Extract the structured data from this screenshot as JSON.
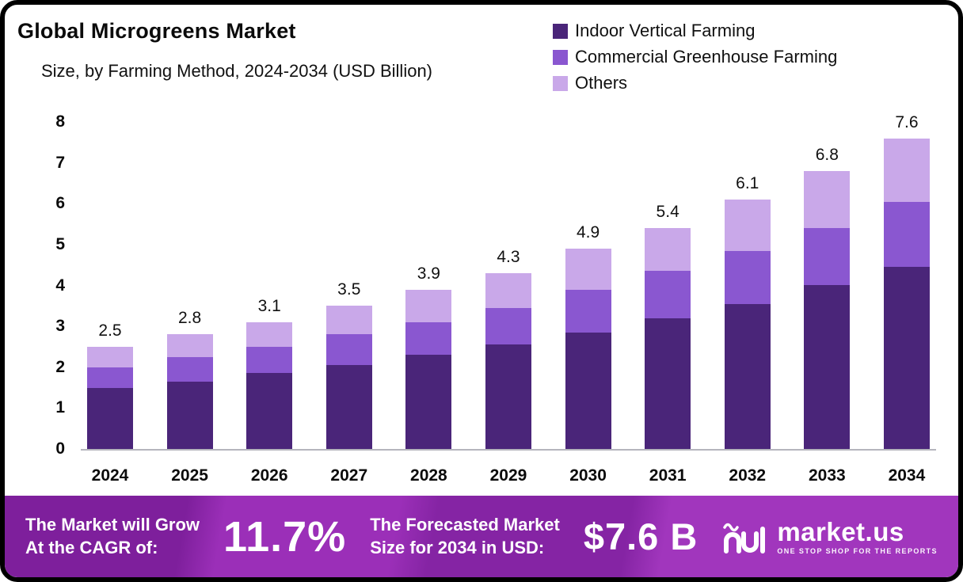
{
  "header": {
    "title": "Global Microgreens Market",
    "subtitle": "Size, by Farming Method, 2024-2034 (USD Billion)"
  },
  "legend": [
    {
      "label": "Indoor Vertical Farming",
      "color": "#4A2579"
    },
    {
      "label": "Commercial Greenhouse Farming",
      "color": "#8A57D0"
    },
    {
      "label": "Others",
      "color": "#C9A8E9"
    }
  ],
  "chart_data": {
    "type": "bar",
    "stacked": true,
    "title": "Global Microgreens Market Size, by Farming Method, 2024-2034 (USD Billion)",
    "categories": [
      "2024",
      "2025",
      "2026",
      "2027",
      "2028",
      "2029",
      "2030",
      "2031",
      "2032",
      "2033",
      "2034"
    ],
    "series": [
      {
        "name": "Indoor Vertical Farming",
        "color": "#4A2579",
        "values": [
          1.5,
          1.65,
          1.85,
          2.05,
          2.3,
          2.55,
          2.85,
          3.2,
          3.55,
          4.0,
          4.45
        ]
      },
      {
        "name": "Commercial Greenhouse Farming",
        "color": "#8A57D0",
        "values": [
          0.5,
          0.6,
          0.65,
          0.75,
          0.8,
          0.9,
          1.05,
          1.15,
          1.3,
          1.4,
          1.6
        ]
      },
      {
        "name": "Others",
        "color": "#C9A8E9",
        "values": [
          0.5,
          0.55,
          0.6,
          0.7,
          0.8,
          0.85,
          1.0,
          1.05,
          1.25,
          1.4,
          1.55
        ]
      }
    ],
    "totals": [
      2.5,
      2.8,
      3.1,
      3.5,
      3.9,
      4.3,
      4.9,
      5.4,
      6.1,
      6.8,
      7.6
    ],
    "xlabel": "",
    "ylabel": "",
    "ylim": [
      0,
      8
    ],
    "yticks": [
      0,
      1,
      2,
      3,
      4,
      5,
      6,
      7,
      8
    ],
    "grid": false,
    "legend_position": "top-right"
  },
  "banner": {
    "cagr_line1": "The Market will Grow",
    "cagr_line2": "At the CAGR of:",
    "cagr_value": "11.7%",
    "forecast_line1": "The Forecasted Market",
    "forecast_line2": "Size for 2034 in USD:",
    "forecast_value": "$7.6 B",
    "brand_name": "market.us",
    "brand_tagline": "ONE STOP SHOP FOR THE REPORTS"
  }
}
